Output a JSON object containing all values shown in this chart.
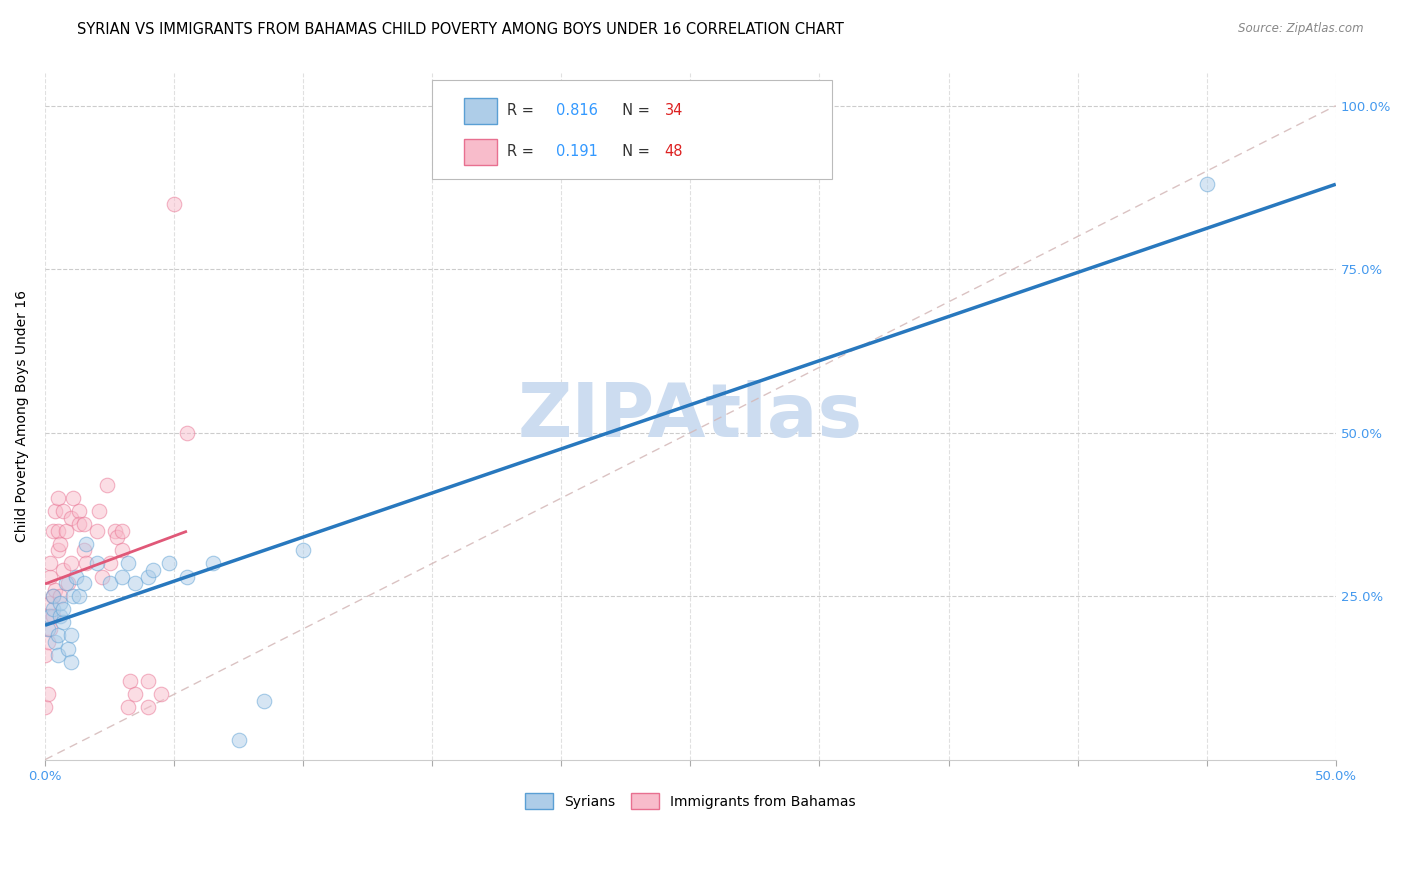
{
  "title": "SYRIAN VS IMMIGRANTS FROM BAHAMAS CHILD POVERTY AMONG BOYS UNDER 16 CORRELATION CHART",
  "source": "Source: ZipAtlas.com",
  "ylabel": "Child Poverty Among Boys Under 16",
  "xlim": [
    0.0,
    0.5
  ],
  "ylim": [
    0.0,
    1.05
  ],
  "xticks": [
    0.0,
    0.05,
    0.1,
    0.15,
    0.2,
    0.25,
    0.3,
    0.35,
    0.4,
    0.45,
    0.5
  ],
  "yticks": [
    0.0,
    0.25,
    0.5,
    0.75,
    1.0
  ],
  "syrians_x": [
    0.001,
    0.002,
    0.003,
    0.003,
    0.004,
    0.005,
    0.005,
    0.006,
    0.006,
    0.007,
    0.007,
    0.008,
    0.009,
    0.01,
    0.01,
    0.011,
    0.012,
    0.013,
    0.015,
    0.016,
    0.02,
    0.025,
    0.03,
    0.032,
    0.035,
    0.04,
    0.042,
    0.048,
    0.055,
    0.065,
    0.075,
    0.085,
    0.1,
    0.45
  ],
  "syrians_y": [
    0.2,
    0.22,
    0.23,
    0.25,
    0.18,
    0.16,
    0.19,
    0.22,
    0.24,
    0.21,
    0.23,
    0.27,
    0.17,
    0.19,
    0.15,
    0.25,
    0.28,
    0.25,
    0.27,
    0.33,
    0.3,
    0.27,
    0.28,
    0.3,
    0.27,
    0.28,
    0.29,
    0.3,
    0.28,
    0.3,
    0.03,
    0.09,
    0.32,
    0.88
  ],
  "bahamas_x": [
    0.0,
    0.0,
    0.001,
    0.001,
    0.001,
    0.002,
    0.002,
    0.002,
    0.002,
    0.003,
    0.003,
    0.003,
    0.004,
    0.004,
    0.005,
    0.005,
    0.005,
    0.006,
    0.006,
    0.007,
    0.007,
    0.008,
    0.009,
    0.01,
    0.01,
    0.011,
    0.013,
    0.013,
    0.015,
    0.015,
    0.016,
    0.02,
    0.021,
    0.022,
    0.024,
    0.025,
    0.027,
    0.028,
    0.03,
    0.03,
    0.032,
    0.033,
    0.035,
    0.04,
    0.04,
    0.045,
    0.05,
    0.055
  ],
  "bahamas_y": [
    0.16,
    0.08,
    0.18,
    0.22,
    0.1,
    0.2,
    0.24,
    0.28,
    0.3,
    0.22,
    0.25,
    0.35,
    0.26,
    0.38,
    0.32,
    0.35,
    0.4,
    0.25,
    0.33,
    0.29,
    0.38,
    0.35,
    0.27,
    0.3,
    0.37,
    0.4,
    0.38,
    0.36,
    0.36,
    0.32,
    0.3,
    0.35,
    0.38,
    0.28,
    0.42,
    0.3,
    0.35,
    0.34,
    0.35,
    0.32,
    0.08,
    0.12,
    0.1,
    0.12,
    0.08,
    0.1,
    0.85,
    0.5
  ],
  "syrian_fill_color": "#aecde8",
  "bahamas_fill_color": "#f8bccb",
  "syrian_edge_color": "#5a9fd4",
  "bahamas_edge_color": "#e87090",
  "syrian_line_color": "#2878be",
  "bahamas_line_color": "#e05878",
  "ref_line_color": "#d4b8b8",
  "r_syrian": "0.816",
  "n_syrian": "34",
  "r_bahamas": "0.191",
  "n_bahamas": "48",
  "r_value_color": "#3399ff",
  "n_value_color": "#dd2222",
  "watermark": "ZIPAtlas",
  "watermark_color": "#ccdcf0",
  "background_color": "#ffffff",
  "title_fontsize": 10.5,
  "axis_label_fontsize": 10,
  "tick_fontsize": 9.5,
  "dot_size": 110,
  "dot_alpha": 0.5,
  "tick_color": "#4499ee"
}
